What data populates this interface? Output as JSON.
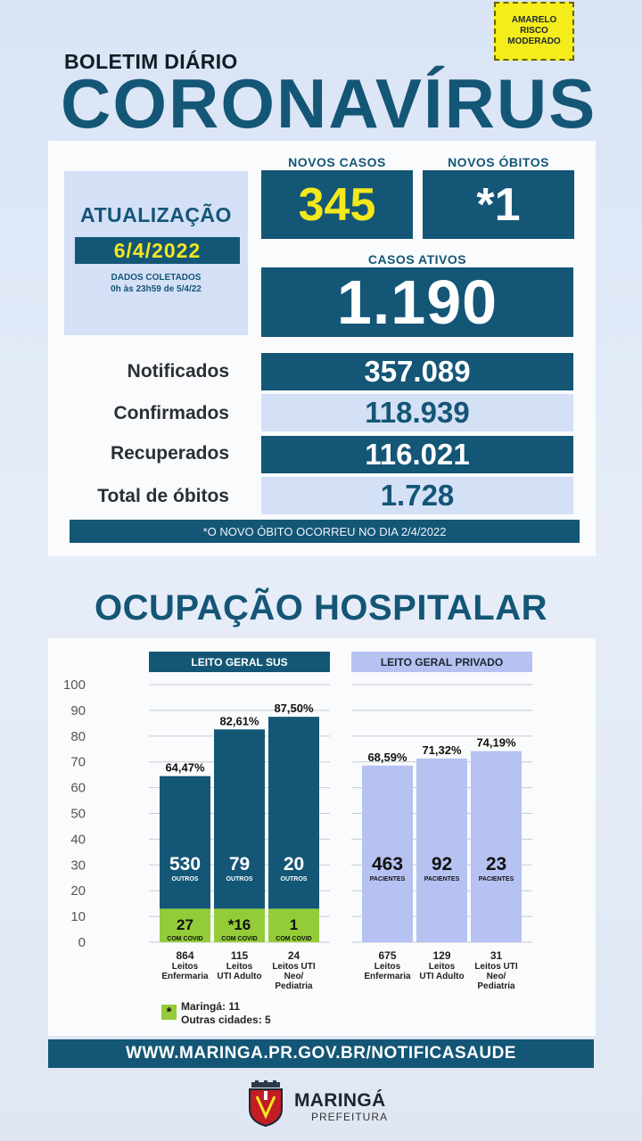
{
  "risk_badge": {
    "line1": "AMARELO",
    "line2": "RISCO",
    "line3": "MODERADO",
    "color": "#f5ec1c"
  },
  "header": {
    "subtitle": "BOLETIM DIÁRIO",
    "title": "CORONAVÍRUS"
  },
  "update": {
    "label": "ATUALIZAÇÃO",
    "date": "6/4/2022",
    "collected_line1": "DADOS COLETADOS",
    "collected_line2": "0h às 23h59 de 5/4/22"
  },
  "new_cases": {
    "label": "NOVOS CASOS",
    "value": "345"
  },
  "new_deaths": {
    "label": "NOVOS ÓBITOS",
    "value": "*1"
  },
  "active_cases": {
    "label": "CASOS ATIVOS",
    "value": "1.190"
  },
  "stats": [
    {
      "label": "Notificados",
      "value": "357.089"
    },
    {
      "label": "Confirmados",
      "value": "118.939"
    },
    {
      "label": "Recuperados",
      "value": "116.021"
    },
    {
      "label": "Total de óbitos",
      "value": "1.728"
    }
  ],
  "footnote": "*O NOVO ÓBITO OCORREU NO DIA 2/4/2022",
  "hospital": {
    "title": "OCUPAÇÃO HOSPITALAR",
    "sus_header": "LEITO GERAL SUS",
    "private_header": "LEITO GERAL PRIVADO",
    "legend_symbol": "*",
    "legend_line1": "Maringá: 11",
    "legend_line2": "Outras cidades: 5"
  },
  "colors": {
    "navy": "#145676",
    "covid_green": "#93cc38",
    "private": "#b6c2f2",
    "accent_yellow": "#f3e81c"
  },
  "chart_data": {
    "type": "bar",
    "ylim": [
      0,
      100
    ],
    "yticks": [
      "0",
      "10",
      "20",
      "30",
      "40",
      "50",
      "60",
      "70",
      "80",
      "90",
      "100"
    ],
    "groups": [
      {
        "name": "LEITO GERAL SUS",
        "bars": [
          {
            "pct": 64.47,
            "pct_label": "64,47%",
            "others": "530",
            "others_label": "OUTROS",
            "covid": "27",
            "covid_label": "COM COVID",
            "covid_pct": 13,
            "beds": "864",
            "cat1": "Leitos",
            "cat2": "Enfermaria",
            "cat3": ""
          },
          {
            "pct": 82.61,
            "pct_label": "82,61%",
            "others": "79",
            "others_label": "OUTROS",
            "covid": "*16",
            "covid_label": "COM COVID",
            "covid_pct": 13,
            "beds": "115",
            "cat1": "Leitos",
            "cat2": "UTI Adulto",
            "cat3": ""
          },
          {
            "pct": 87.5,
            "pct_label": "87,50%",
            "others": "20",
            "others_label": "OUTROS",
            "covid": "1",
            "covid_label": "COM COVID",
            "covid_pct": 13,
            "beds": "24",
            "cat1": "Leitos UTI",
            "cat2": "Neo/",
            "cat3": "Pediatria"
          }
        ]
      },
      {
        "name": "LEITO GERAL PRIVADO",
        "bars": [
          {
            "pct": 68.59,
            "pct_label": "68,59%",
            "patients": "463",
            "patients_label": "PACIENTES",
            "beds": "675",
            "cat1": "Leitos",
            "cat2": "Enfermaria",
            "cat3": ""
          },
          {
            "pct": 71.32,
            "pct_label": "71,32%",
            "patients": "92",
            "patients_label": "PACIENTES",
            "beds": "129",
            "cat1": "Leitos",
            "cat2": "UTI Adulto",
            "cat3": ""
          },
          {
            "pct": 74.19,
            "pct_label": "74,19%",
            "patients": "23",
            "patients_label": "PACIENTES",
            "beds": "31",
            "cat1": "Leitos UTI",
            "cat2": "Neo/",
            "cat3": "Pediatria"
          }
        ]
      }
    ]
  },
  "footer": {
    "url": "WWW.MARINGA.PR.GOV.BR/NOTIFICASAUDE",
    "logo_name": "MARINGÁ",
    "logo_sub": "PREFEITURA",
    "crest": "city-crest-icon"
  }
}
